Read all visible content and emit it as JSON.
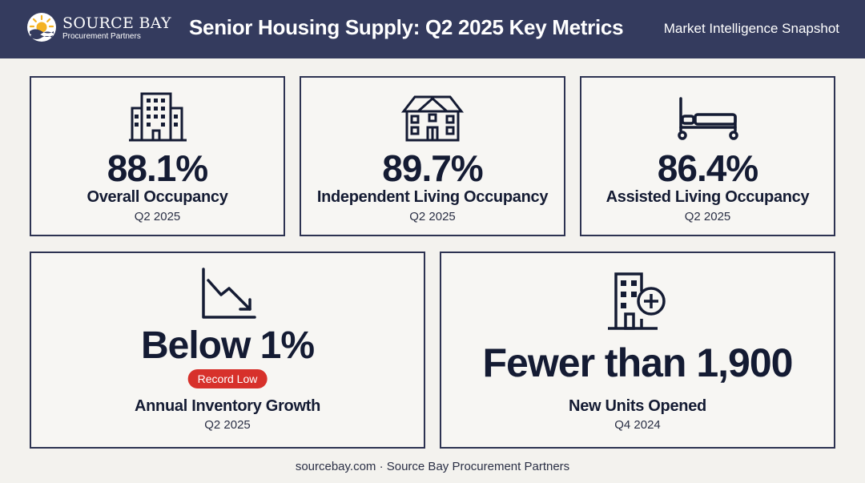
{
  "header": {
    "logo_name": "SOURCE BAY",
    "logo_sub": "Procurement Partners",
    "title": "Senior Housing Supply: Q2 2025 Key Metrics",
    "tagline": "Market Intelligence Snapshot"
  },
  "metrics": [
    {
      "value": "88.1%",
      "label": "Overall Occupancy",
      "period": "Q2 2025",
      "icon": "office-building-icon"
    },
    {
      "value": "89.7%",
      "label": "Independent Living Occupancy",
      "period": "Q2 2025",
      "icon": "house-icon"
    },
    {
      "value": "86.4%",
      "label": "Assisted Living Occupancy",
      "period": "Q2 2025",
      "icon": "bed-icon"
    },
    {
      "value": "Below 1%",
      "badge": "Record Low",
      "label": "Annual Inventory Growth",
      "period": "Q2 2025",
      "icon": "declining-chart-icon"
    },
    {
      "value": "Fewer than 1,900",
      "label": "New Units Opened",
      "period": "Q4 2024",
      "icon": "building-plus-icon"
    }
  ],
  "footer": "sourcebay.com · Source Bay Procurement Partners",
  "colors": {
    "header_bg": "#343b5e",
    "text": "#141b33",
    "badge": "#d7312b",
    "page_bg": "#f3f2ee"
  }
}
